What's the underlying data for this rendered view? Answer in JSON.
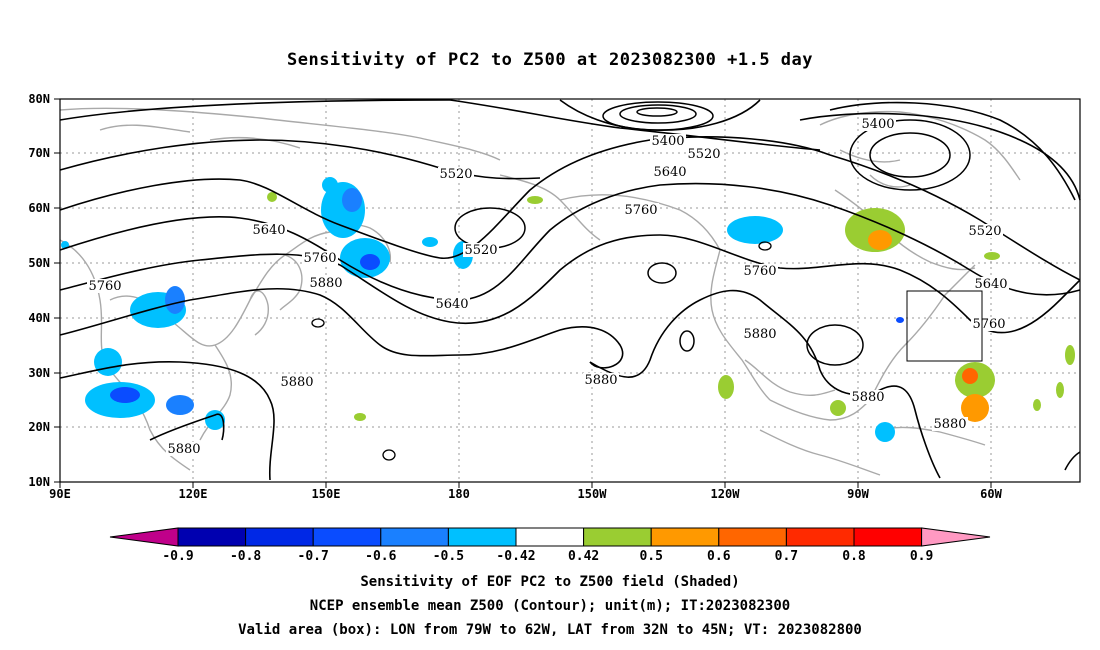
{
  "title": "Sensitivity of PC2 to Z500 at 2023082300 +1.5 day",
  "map": {
    "lat_labels": [
      "80N",
      "70N",
      "60N",
      "50N",
      "40N",
      "30N",
      "20N",
      "10N"
    ],
    "lon_labels": [
      "90E",
      "120E",
      "150E",
      "180",
      "150W",
      "120W",
      "90W",
      "60W"
    ],
    "contour_labels": [
      "5400",
      "5400",
      "5520",
      "5520",
      "5520",
      "5520",
      "5640",
      "5640",
      "5640",
      "5640",
      "5760",
      "5760",
      "5760",
      "5760",
      "5760",
      "5880",
      "5880",
      "5880",
      "5880",
      "5880",
      "5880",
      "5880"
    ],
    "box": {
      "lon": [
        "79W",
        "62W"
      ],
      "lat": [
        "32N",
        "45N"
      ]
    }
  },
  "colorbar": {
    "labels": [
      "-0.9",
      "-0.8",
      "-0.7",
      "-0.6",
      "-0.5",
      "-0.42",
      "0.42",
      "0.5",
      "0.6",
      "0.7",
      "0.8",
      "0.9"
    ],
    "colors": [
      "#c0008a",
      "#0000b0",
      "#0028e6",
      "#0a4cff",
      "#1a80ff",
      "#00c0ff",
      "#ffffff",
      "#9acd32",
      "#ff9900",
      "#ff6600",
      "#ff2a00",
      "#ff0000",
      "#ff99c2"
    ]
  },
  "caption": {
    "line1": "Sensitivity of EOF PC2 to Z500 field (Shaded)",
    "line2": "NCEP ensemble mean Z500 (Contour); unit(m); IT:2023082300",
    "line3": "Valid area (box): LON from 79W to 62W, LAT from 32N to 45N; VT: 2023082800"
  }
}
